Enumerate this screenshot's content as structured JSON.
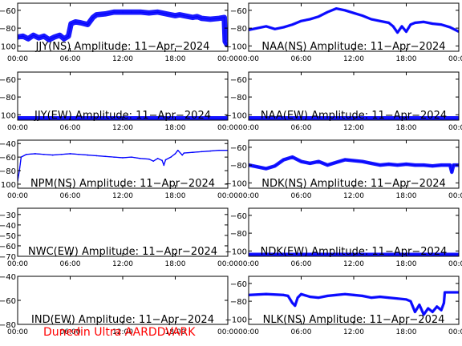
{
  "footer": "Dunedin Ultra AARDDVARK",
  "chart_data": [
    {
      "type": "line",
      "title": "JJY(NS) Amplitude: 11-Apr-2024",
      "yticks": [
        -100,
        -80,
        -60
      ],
      "ylim": [
        -106,
        -52
      ],
      "xticks": [
        "00:00",
        "06:00",
        "12:00",
        "18:00",
        "00:00"
      ],
      "xlim": [
        0,
        24
      ],
      "series": [
        {
          "color": "#0000ff",
          "band": 3,
          "points": [
            [
              0,
              -90
            ],
            [
              0.6,
              -89
            ],
            [
              1.2,
              -92
            ],
            [
              1.8,
              -88
            ],
            [
              2.4,
              -91
            ],
            [
              3,
              -89
            ],
            [
              3.6,
              -93
            ],
            [
              4.2,
              -90
            ],
            [
              4.8,
              -88
            ],
            [
              5.3,
              -92
            ],
            [
              5.8,
              -89
            ],
            [
              6.1,
              -75
            ],
            [
              6.6,
              -73
            ],
            [
              7.2,
              -74
            ],
            [
              8,
              -76
            ],
            [
              8.6,
              -68
            ],
            [
              9,
              -65
            ],
            [
              10,
              -64
            ],
            [
              11,
              -62
            ],
            [
              12,
              -62
            ],
            [
              13,
              -62
            ],
            [
              14,
              -62
            ],
            [
              15,
              -63
            ],
            [
              16,
              -62
            ],
            [
              17,
              -64
            ],
            [
              18,
              -66
            ],
            [
              18.5,
              -65
            ],
            [
              19,
              -66
            ],
            [
              20,
              -68
            ],
            [
              20.5,
              -67
            ],
            [
              21,
              -69
            ],
            [
              22,
              -70
            ],
            [
              23,
              -69
            ],
            [
              23.6,
              -68
            ],
            [
              23.7,
              -95
            ],
            [
              24,
              -100
            ]
          ]
        }
      ]
    },
    {
      "type": "line",
      "title": "NAA(NS) Amplitude: 11-Apr-2024",
      "yticks": [
        -100,
        -80,
        -60
      ],
      "ylim": [
        -106,
        -52
      ],
      "xticks": [
        "00:00",
        "06:00",
        "12:00",
        "18:00",
        "00:00"
      ],
      "xlim": [
        0,
        24
      ],
      "series": [
        {
          "color": "#0000ff",
          "band": 1.5,
          "points": [
            [
              0,
              -82
            ],
            [
              1,
              -80
            ],
            [
              2,
              -78
            ],
            [
              3,
              -81
            ],
            [
              4,
              -79
            ],
            [
              5,
              -76
            ],
            [
              6,
              -72
            ],
            [
              7,
              -70
            ],
            [
              8,
              -67
            ],
            [
              9,
              -62
            ],
            [
              10,
              -58
            ],
            [
              11,
              -60
            ],
            [
              12,
              -63
            ],
            [
              13,
              -66
            ],
            [
              14,
              -70
            ],
            [
              15,
              -72
            ],
            [
              16,
              -74
            ],
            [
              16.5,
              -78
            ],
            [
              17,
              -85
            ],
            [
              17.5,
              -78
            ],
            [
              18,
              -84
            ],
            [
              18.5,
              -76
            ],
            [
              19,
              -74
            ],
            [
              20,
              -73
            ],
            [
              21,
              -75
            ],
            [
              22,
              -76
            ],
            [
              23,
              -79
            ],
            [
              24,
              -84
            ]
          ]
        }
      ]
    },
    {
      "type": "line",
      "title": "JJY(EW) Amplitude: 11-Apr-2024",
      "yticks": [
        -100,
        -80,
        -60
      ],
      "ylim": [
        -106,
        -52
      ],
      "xticks": [
        "00:00",
        "06:00",
        "12:00",
        "18:00",
        "00:00"
      ],
      "xlim": [
        0,
        24
      ],
      "series": [
        {
          "color": "#0000ff",
          "band": 2.5,
          "points": [
            [
              0,
              -104
            ],
            [
              4,
              -104
            ],
            [
              8,
              -104
            ],
            [
              12,
              -104
            ],
            [
              16,
              -104
            ],
            [
              20,
              -104
            ],
            [
              24,
              -104
            ]
          ]
        }
      ]
    },
    {
      "type": "line",
      "title": "NAA(EW) Amplitude: 11-Apr-2024",
      "yticks": [
        -100,
        -80,
        -60
      ],
      "ylim": [
        -106,
        -52
      ],
      "xticks": [
        "00:00",
        "06:00",
        "12:00",
        "18:00",
        "00:00"
      ],
      "xlim": [
        0,
        24
      ],
      "series": [
        {
          "color": "#0000ff",
          "band": 2.5,
          "points": [
            [
              0,
              -104
            ],
            [
              4,
              -104
            ],
            [
              8,
              -104
            ],
            [
              12,
              -104
            ],
            [
              16,
              -104
            ],
            [
              20,
              -104
            ],
            [
              24,
              -104
            ]
          ]
        }
      ]
    },
    {
      "type": "line",
      "title": "NPM(NS) Amplitude: 11-Apr-2024",
      "yticks": [
        -100,
        -80,
        -60,
        -40
      ],
      "ylim": [
        -106,
        -35
      ],
      "xticks": [
        "00:00",
        "06:00",
        "12:00",
        "18:00",
        "00:00"
      ],
      "xlim": [
        0,
        24
      ],
      "series": [
        {
          "color": "#0000ff",
          "band": 0.8,
          "points": [
            [
              0,
              -95
            ],
            [
              0.2,
              -80
            ],
            [
              0.4,
              -60
            ],
            [
              1,
              -56
            ],
            [
              2,
              -55
            ],
            [
              3,
              -56
            ],
            [
              4,
              -57
            ],
            [
              5,
              -56
            ],
            [
              6,
              -55
            ],
            [
              7,
              -56
            ],
            [
              8,
              -57
            ],
            [
              9,
              -58
            ],
            [
              10,
              -59
            ],
            [
              11,
              -60
            ],
            [
              12,
              -61
            ],
            [
              13,
              -60
            ],
            [
              14,
              -62
            ],
            [
              15,
              -63
            ],
            [
              15.5,
              -66
            ],
            [
              16,
              -62
            ],
            [
              16.5,
              -65
            ],
            [
              16.7,
              -72
            ],
            [
              16.9,
              -64
            ],
            [
              17.5,
              -60
            ],
            [
              18,
              -55
            ],
            [
              18.3,
              -50
            ],
            [
              18.8,
              -57
            ],
            [
              19,
              -54
            ],
            [
              20,
              -53
            ],
            [
              21,
              -52
            ],
            [
              22,
              -51
            ],
            [
              23,
              -50
            ],
            [
              24,
              -50
            ]
          ]
        }
      ]
    },
    {
      "type": "line",
      "title": "NDK(NS) Amplitude: 11-Apr-2024",
      "yticks": [
        -100,
        -80,
        -60
      ],
      "ylim": [
        -106,
        -52
      ],
      "xticks": [
        "00:00",
        "06:00",
        "12:00",
        "18:00",
        "00:00"
      ],
      "xlim": [
        0,
        24
      ],
      "series": [
        {
          "color": "#0000ff",
          "band": 2,
          "points": [
            [
              0,
              -80
            ],
            [
              1,
              -82
            ],
            [
              2,
              -84
            ],
            [
              3,
              -81
            ],
            [
              4,
              -74
            ],
            [
              5,
              -71
            ],
            [
              6,
              -76
            ],
            [
              7,
              -78
            ],
            [
              8,
              -76
            ],
            [
              9,
              -80
            ],
            [
              10,
              -77
            ],
            [
              11,
              -74
            ],
            [
              12,
              -75
            ],
            [
              13,
              -76
            ],
            [
              14,
              -78
            ],
            [
              15,
              -80
            ],
            [
              16,
              -79
            ],
            [
              17,
              -80
            ],
            [
              18,
              -79
            ],
            [
              19,
              -80
            ],
            [
              20,
              -80
            ],
            [
              21,
              -81
            ],
            [
              22,
              -80
            ],
            [
              23,
              -80
            ],
            [
              23.2,
              -88
            ],
            [
              23.4,
              -80
            ],
            [
              24,
              -80
            ]
          ]
        }
      ]
    },
    {
      "type": "line",
      "title": "NWC(EW) Amplitude: 11-Apr-2024",
      "yticks": [
        -70,
        -60,
        -50,
        -40,
        -30
      ],
      "ylim": [
        -70,
        -24
      ],
      "xticks": [
        "00:00",
        "06:00",
        "12:00",
        "18:00",
        "00:00"
      ],
      "xlim": [
        0,
        24
      ],
      "series": []
    },
    {
      "type": "line",
      "title": "NDK(EW) Amplitude: 11-Apr-2024",
      "yticks": [
        -100,
        -80,
        -60
      ],
      "ylim": [
        -106,
        -52
      ],
      "xticks": [
        "00:00",
        "06:00",
        "12:00",
        "18:00",
        "00:00"
      ],
      "xlim": [
        0,
        24
      ],
      "series": [
        {
          "color": "#0000ff",
          "band": 2,
          "points": [
            [
              0,
              -104
            ],
            [
              4,
              -104
            ],
            [
              8,
              -104
            ],
            [
              12,
              -104
            ],
            [
              16,
              -104
            ],
            [
              20,
              -104
            ],
            [
              24,
              -104
            ]
          ]
        }
      ]
    },
    {
      "type": "line",
      "title": "IND(EW) Amplitude: 11-Apr-2024",
      "yticks": [
        -80,
        -60,
        -40
      ],
      "ylim": [
        -80,
        -40
      ],
      "xticks": [
        "00:00",
        "06:00",
        "12:00",
        "18:00",
        "00:00"
      ],
      "xlim": [
        0,
        24
      ],
      "series": []
    },
    {
      "type": "line",
      "title": "NLK(NS) Amplitude: 11-Apr-2024",
      "yticks": [
        -100,
        -80,
        -60
      ],
      "ylim": [
        -106,
        -52
      ],
      "xticks": [
        "00:00",
        "06:00",
        "12:00",
        "18:00",
        "00:00"
      ],
      "xlim": [
        0,
        24
      ],
      "series": [
        {
          "color": "#0000ff",
          "band": 1.5,
          "points": [
            [
              0,
              -73
            ],
            [
              2,
              -72
            ],
            [
              4,
              -73
            ],
            [
              4.5,
              -74
            ],
            [
              5,
              -82
            ],
            [
              5.3,
              -85
            ],
            [
              5.6,
              -76
            ],
            [
              6,
              -72
            ],
            [
              7,
              -75
            ],
            [
              8,
              -76
            ],
            [
              9,
              -74
            ],
            [
              10,
              -73
            ],
            [
              11,
              -72
            ],
            [
              12,
              -73
            ],
            [
              13,
              -74
            ],
            [
              14,
              -76
            ],
            [
              15,
              -75
            ],
            [
              16,
              -76
            ],
            [
              17,
              -77
            ],
            [
              18,
              -78
            ],
            [
              18.5,
              -80
            ],
            [
              19,
              -92
            ],
            [
              19.5,
              -84
            ],
            [
              20,
              -95
            ],
            [
              20.5,
              -88
            ],
            [
              21,
              -92
            ],
            [
              21.5,
              -86
            ],
            [
              22,
              -90
            ],
            [
              22.3,
              -82
            ],
            [
              22.4,
              -70
            ],
            [
              24,
              -70
            ]
          ]
        }
      ]
    }
  ]
}
